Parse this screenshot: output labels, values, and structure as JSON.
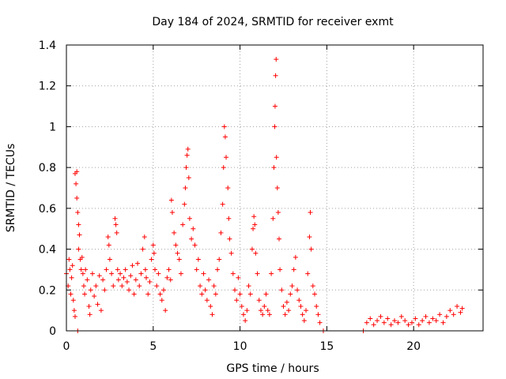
{
  "chart_data": {
    "type": "scatter",
    "title": "Day 184 of 2024, SRMTID for receiver exmt",
    "xlabel": "GPS time / hours",
    "ylabel": "SRMTID / TECUs",
    "xlim": [
      0,
      24
    ],
    "ylim": [
      0,
      1.4
    ],
    "xticks": [
      0,
      5,
      10,
      15,
      20
    ],
    "xtick_labels": [
      "0",
      "5",
      "10",
      "15",
      "20"
    ],
    "yticks": [
      0,
      0.2,
      0.4,
      0.6,
      0.8,
      1.0,
      1.2,
      1.4
    ],
    "ytick_labels": [
      "0",
      "0.2",
      "0.4",
      "0.6",
      "0.8",
      "1",
      "1.2",
      "1.4"
    ],
    "grid": true,
    "marker": "+",
    "color": "#ff0000",
    "series": [
      {
        "name": "SRMTID",
        "points": [
          [
            0.0,
            0.28
          ],
          [
            0.1,
            0.22
          ],
          [
            0.15,
            0.35
          ],
          [
            0.2,
            0.3
          ],
          [
            0.25,
            0.18
          ],
          [
            0.3,
            0.26
          ],
          [
            0.35,
            0.32
          ],
          [
            0.4,
            0.15
          ],
          [
            0.45,
            0.1
          ],
          [
            0.5,
            0.07
          ],
          [
            0.5,
            0.77
          ],
          [
            0.55,
            0.72
          ],
          [
            0.6,
            0.65
          ],
          [
            0.6,
            0.78
          ],
          [
            0.65,
            0.58
          ],
          [
            0.7,
            0.52
          ],
          [
            0.7,
            0.4
          ],
          [
            0.75,
            0.47
          ],
          [
            0.8,
            0.35
          ],
          [
            0.85,
            0.3
          ],
          [
            0.65,
            0.0
          ],
          [
            0.9,
            0.36
          ],
          [
            0.95,
            0.28
          ],
          [
            1.0,
            0.22
          ],
          [
            1.05,
            0.18
          ],
          [
            1.1,
            0.3
          ],
          [
            1.2,
            0.25
          ],
          [
            1.3,
            0.12
          ],
          [
            1.35,
            0.08
          ],
          [
            1.4,
            0.2
          ],
          [
            1.5,
            0.28
          ],
          [
            1.6,
            0.17
          ],
          [
            1.7,
            0.22
          ],
          [
            1.8,
            0.13
          ],
          [
            1.9,
            0.27
          ],
          [
            2.0,
            0.1
          ],
          [
            2.1,
            0.25
          ],
          [
            2.2,
            0.2
          ],
          [
            2.3,
            0.3
          ],
          [
            2.4,
            0.46
          ],
          [
            2.45,
            0.42
          ],
          [
            2.5,
            0.35
          ],
          [
            2.6,
            0.28
          ],
          [
            2.7,
            0.22
          ],
          [
            2.8,
            0.55
          ],
          [
            2.85,
            0.52
          ],
          [
            2.9,
            0.48
          ],
          [
            2.95,
            0.3
          ],
          [
            3.0,
            0.25
          ],
          [
            3.1,
            0.28
          ],
          [
            3.2,
            0.22
          ],
          [
            3.3,
            0.26
          ],
          [
            3.4,
            0.3
          ],
          [
            3.5,
            0.24
          ],
          [
            3.6,
            0.2
          ],
          [
            3.7,
            0.27
          ],
          [
            3.8,
            0.32
          ],
          [
            3.9,
            0.18
          ],
          [
            4.0,
            0.25
          ],
          [
            4.1,
            0.33
          ],
          [
            4.2,
            0.22
          ],
          [
            4.3,
            0.28
          ],
          [
            4.4,
            0.4
          ],
          [
            4.5,
            0.46
          ],
          [
            4.55,
            0.3
          ],
          [
            4.6,
            0.26
          ],
          [
            4.7,
            0.18
          ],
          [
            4.8,
            0.24
          ],
          [
            4.9,
            0.35
          ],
          [
            5.0,
            0.42
          ],
          [
            5.05,
            0.38
          ],
          [
            5.1,
            0.3
          ],
          [
            5.2,
            0.22
          ],
          [
            5.3,
            0.28
          ],
          [
            5.4,
            0.18
          ],
          [
            5.5,
            0.15
          ],
          [
            5.6,
            0.2
          ],
          [
            5.7,
            0.1
          ],
          [
            5.8,
            0.26
          ],
          [
            5.9,
            0.3
          ],
          [
            6.0,
            0.25
          ],
          [
            6.05,
            0.64
          ],
          [
            6.1,
            0.58
          ],
          [
            6.2,
            0.48
          ],
          [
            6.3,
            0.42
          ],
          [
            6.4,
            0.38
          ],
          [
            6.5,
            0.35
          ],
          [
            6.6,
            0.28
          ],
          [
            6.7,
            0.52
          ],
          [
            6.8,
            0.62
          ],
          [
            6.85,
            0.7
          ],
          [
            6.9,
            0.8
          ],
          [
            6.95,
            0.86
          ],
          [
            7.0,
            0.89
          ],
          [
            7.05,
            0.75
          ],
          [
            7.1,
            0.55
          ],
          [
            7.2,
            0.45
          ],
          [
            7.3,
            0.5
          ],
          [
            7.4,
            0.42
          ],
          [
            7.5,
            0.3
          ],
          [
            7.6,
            0.35
          ],
          [
            7.7,
            0.22
          ],
          [
            7.8,
            0.18
          ],
          [
            7.9,
            0.28
          ],
          [
            8.0,
            0.2
          ],
          [
            8.1,
            0.15
          ],
          [
            8.2,
            0.25
          ],
          [
            8.3,
            0.12
          ],
          [
            8.4,
            0.08
          ],
          [
            8.5,
            0.22
          ],
          [
            8.6,
            0.18
          ],
          [
            8.7,
            0.3
          ],
          [
            8.8,
            0.35
          ],
          [
            8.9,
            0.48
          ],
          [
            9.0,
            0.62
          ],
          [
            9.05,
            0.8
          ],
          [
            9.1,
            1.0
          ],
          [
            9.15,
            0.95
          ],
          [
            9.2,
            0.85
          ],
          [
            9.3,
            0.7
          ],
          [
            9.35,
            0.55
          ],
          [
            9.4,
            0.45
          ],
          [
            9.5,
            0.38
          ],
          [
            9.6,
            0.28
          ],
          [
            9.7,
            0.2
          ],
          [
            9.8,
            0.15
          ],
          [
            9.9,
            0.26
          ],
          [
            10.0,
            0.18
          ],
          [
            10.1,
            0.12
          ],
          [
            10.2,
            0.08
          ],
          [
            10.3,
            0.05
          ],
          [
            10.4,
            0.1
          ],
          [
            10.5,
            0.22
          ],
          [
            10.6,
            0.18
          ],
          [
            10.7,
            0.4
          ],
          [
            10.75,
            0.5
          ],
          [
            10.8,
            0.56
          ],
          [
            10.85,
            0.52
          ],
          [
            10.9,
            0.38
          ],
          [
            11.0,
            0.28
          ],
          [
            11.1,
            0.15
          ],
          [
            11.2,
            0.1
          ],
          [
            11.3,
            0.08
          ],
          [
            11.4,
            0.12
          ],
          [
            11.5,
            0.18
          ],
          [
            11.6,
            0.1
          ],
          [
            11.7,
            0.08
          ],
          [
            11.8,
            0.28
          ],
          [
            11.9,
            0.55
          ],
          [
            11.95,
            0.8
          ],
          [
            12.0,
            1.0
          ],
          [
            12.02,
            1.1
          ],
          [
            12.05,
            1.25
          ],
          [
            12.08,
            1.33
          ],
          [
            12.1,
            0.85
          ],
          [
            12.15,
            0.7
          ],
          [
            12.2,
            0.58
          ],
          [
            12.25,
            0.45
          ],
          [
            12.3,
            0.3
          ],
          [
            12.4,
            0.2
          ],
          [
            12.5,
            0.12
          ],
          [
            12.6,
            0.08
          ],
          [
            12.7,
            0.14
          ],
          [
            12.8,
            0.1
          ],
          [
            12.9,
            0.18
          ],
          [
            13.0,
            0.22
          ],
          [
            13.1,
            0.3
          ],
          [
            13.2,
            0.36
          ],
          [
            13.3,
            0.2
          ],
          [
            13.4,
            0.15
          ],
          [
            13.5,
            0.12
          ],
          [
            13.6,
            0.08
          ],
          [
            13.7,
            0.05
          ],
          [
            13.8,
            0.1
          ],
          [
            13.9,
            0.28
          ],
          [
            14.0,
            0.46
          ],
          [
            14.05,
            0.58
          ],
          [
            14.1,
            0.4
          ],
          [
            14.2,
            0.22
          ],
          [
            14.3,
            0.18
          ],
          [
            14.4,
            0.12
          ],
          [
            14.5,
            0.08
          ],
          [
            14.6,
            0.04
          ],
          [
            14.8,
            0.0
          ],
          [
            17.1,
            0.0
          ],
          [
            17.3,
            0.04
          ],
          [
            17.5,
            0.06
          ],
          [
            17.7,
            0.03
          ],
          [
            17.9,
            0.05
          ],
          [
            18.1,
            0.07
          ],
          [
            18.3,
            0.04
          ],
          [
            18.5,
            0.06
          ],
          [
            18.7,
            0.03
          ],
          [
            18.9,
            0.05
          ],
          [
            19.1,
            0.04
          ],
          [
            19.3,
            0.07
          ],
          [
            19.5,
            0.05
          ],
          [
            19.7,
            0.03
          ],
          [
            19.9,
            0.04
          ],
          [
            20.1,
            0.06
          ],
          [
            20.3,
            0.03
          ],
          [
            20.5,
            0.05
          ],
          [
            20.7,
            0.07
          ],
          [
            20.9,
            0.04
          ],
          [
            21.1,
            0.06
          ],
          [
            21.3,
            0.05
          ],
          [
            21.5,
            0.08
          ],
          [
            21.7,
            0.04
          ],
          [
            21.9,
            0.07
          ],
          [
            22.1,
            0.1
          ],
          [
            22.3,
            0.08
          ],
          [
            22.5,
            0.12
          ],
          [
            22.7,
            0.09
          ],
          [
            22.8,
            0.11
          ]
        ]
      }
    ]
  }
}
